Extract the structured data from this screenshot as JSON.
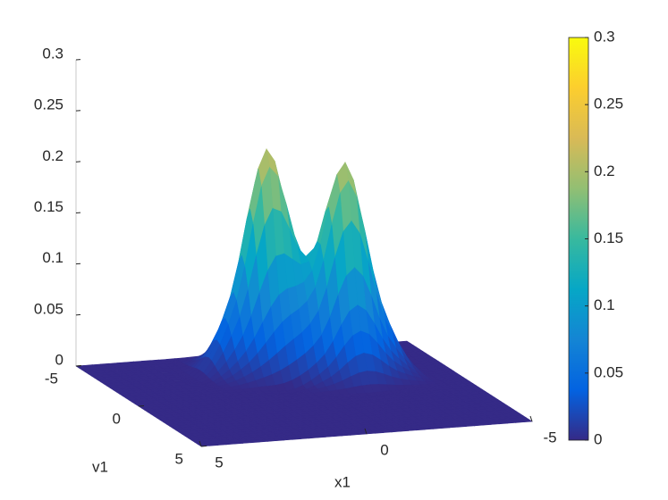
{
  "chart_data": {
    "type": "surface",
    "x": [
      -5,
      -4,
      -3,
      -2,
      -1,
      0,
      1,
      2,
      3,
      4,
      5
    ],
    "y": [
      -5,
      -4,
      -3,
      -2,
      -1,
      0,
      1,
      2,
      3,
      4,
      5
    ],
    "z": [
      [
        0,
        0,
        0,
        0,
        0.001,
        0.004,
        0.001,
        0,
        0,
        0,
        0
      ],
      [
        0,
        0,
        0.001,
        0.005,
        0.029,
        0.078,
        0.028,
        0.001,
        0,
        0,
        0
      ],
      [
        0,
        0.001,
        0.027,
        0.078,
        0.104,
        0.216,
        0.078,
        0.004,
        0,
        0,
        0
      ],
      [
        0,
        0.004,
        0.074,
        0.206,
        0.102,
        0.081,
        0.028,
        0.001,
        0,
        0,
        0
      ],
      [
        0,
        0.001,
        0.027,
        0.074,
        0.028,
        0.005,
        0.001,
        0,
        0,
        0,
        0
      ],
      [
        0,
        0,
        0.001,
        0.004,
        0.001,
        0,
        0,
        0,
        0,
        0,
        0
      ],
      [
        0,
        0,
        0,
        0,
        0,
        0,
        0,
        0,
        0,
        0,
        0
      ],
      [
        0,
        0,
        0,
        0,
        0,
        0,
        0,
        0,
        0,
        0,
        0
      ],
      [
        0,
        0,
        0,
        0,
        0,
        0,
        0,
        0,
        0,
        0,
        0
      ],
      [
        0,
        0,
        0,
        0,
        0,
        0,
        0,
        0,
        0,
        0,
        0
      ],
      [
        0,
        0,
        0,
        0,
        0,
        0,
        0,
        0,
        0,
        0,
        0
      ]
    ],
    "xlabel": "x1",
    "ylabel": "v1",
    "xlim": [
      -5,
      5
    ],
    "ylim": [
      -5,
      5
    ],
    "zlim": [
      0,
      0.3
    ],
    "xticks": [
      -5,
      0,
      5
    ],
    "yticks": [
      -5,
      0,
      5
    ],
    "zticks": [
      0,
      0.05,
      0.1,
      0.15,
      0.2,
      0.25,
      0.3
    ],
    "colormap": "parula",
    "clim": [
      0,
      0.3
    ],
    "colorbar_ticks": [
      0,
      0.05,
      0.1,
      0.15,
      0.2,
      0.25,
      0.3
    ]
  }
}
